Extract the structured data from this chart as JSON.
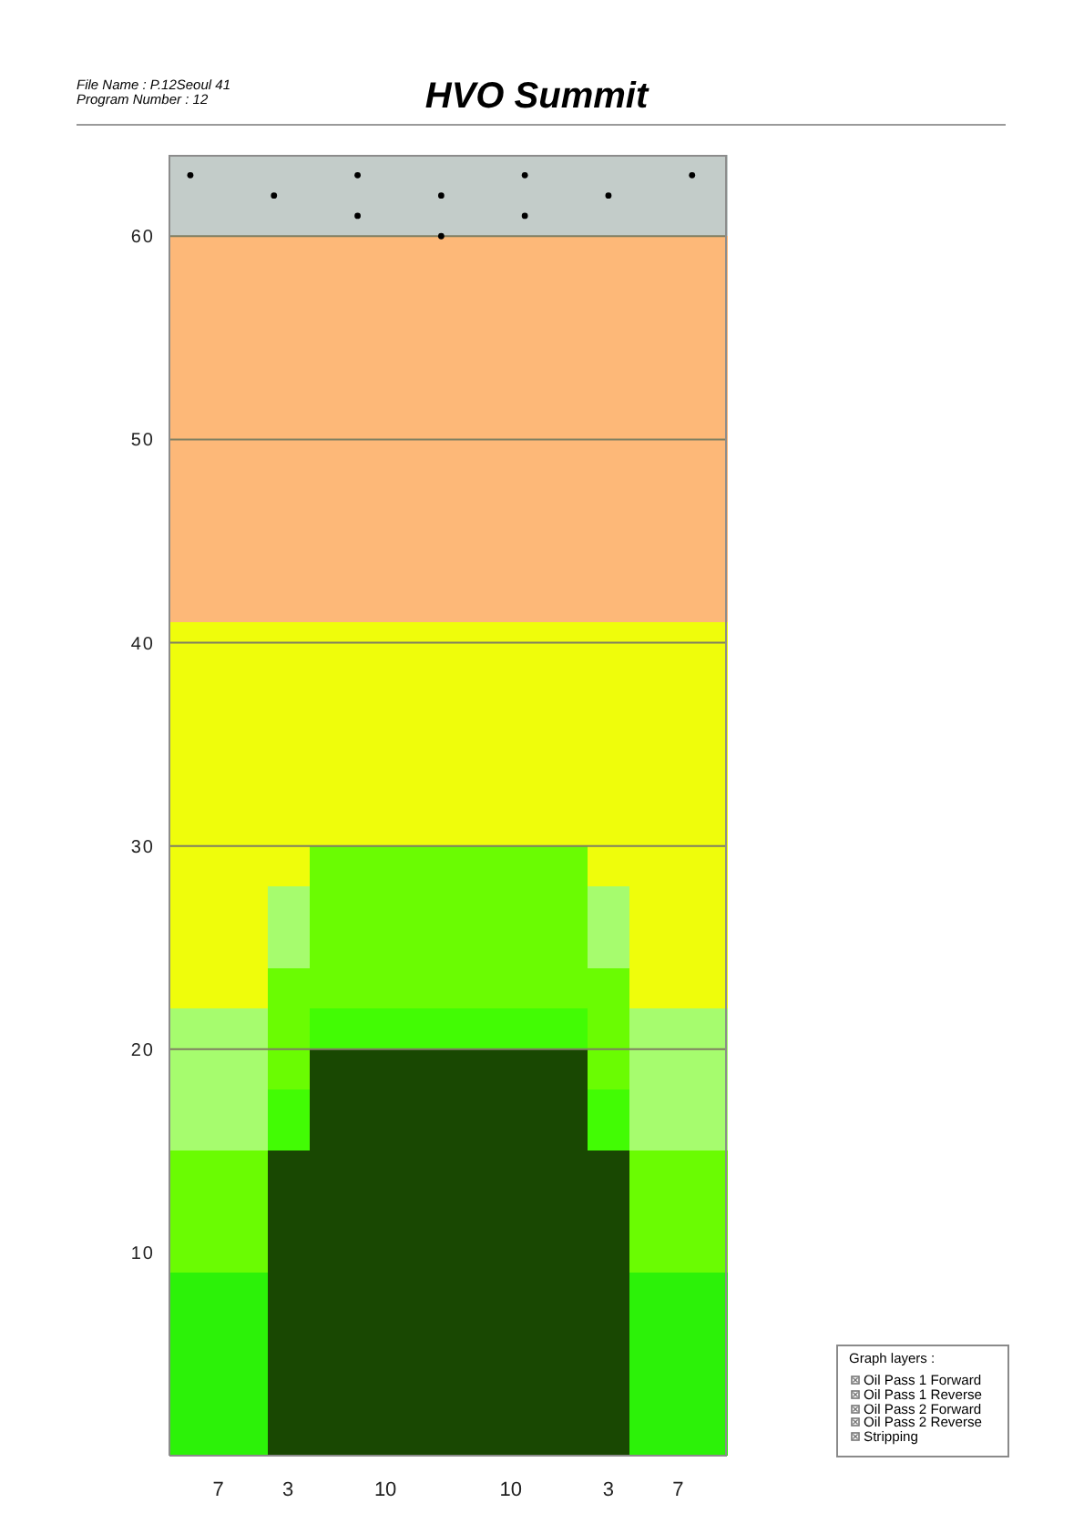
{
  "chart_data": {
    "type": "bar",
    "title": "HVO Summit",
    "annotations": [
      "File Name : P.12Seoul 41",
      "Program Number : 12",
      "Graph layers :",
      "Oil Pass 1 Forward",
      "Oil Pass 1 Reverse",
      "Oil Pass 2 Forward",
      "Oil Pass 2 Reverse",
      "Stripping"
    ],
    "categories": [
      null,
      null,
      null,
      "7",
      null,
      null,
      null,
      null,
      "3",
      null,
      null,
      null,
      null,
      null,
      null,
      "10",
      null,
      null,
      null,
      null,
      null,
      null,
      null,
      null,
      "10",
      null,
      null,
      null,
      null,
      null,
      null,
      "3",
      null,
      null,
      null,
      null,
      "7",
      null,
      null,
      null
    ],
    "stacked": true,
    "series": [
      {
        "color": "#194802",
        "values": [
          0,
          0,
          0,
          0,
          0,
          0,
          0,
          15,
          15,
          15,
          20,
          20,
          20,
          20,
          20,
          20,
          20,
          20,
          20,
          20,
          20,
          20,
          20,
          20,
          20,
          20,
          20,
          20,
          20,
          20,
          15,
          15,
          15,
          0,
          0,
          0,
          0,
          0,
          0,
          0
        ]
      },
      {
        "color": "#2cf208",
        "values": [
          9,
          9,
          9,
          9,
          9,
          9,
          9,
          0,
          0,
          0,
          0,
          0,
          0,
          0,
          0,
          0,
          0,
          0,
          0,
          0,
          0,
          0,
          0,
          0,
          0,
          0,
          0,
          0,
          0,
          0,
          0,
          0,
          0,
          9,
          9,
          9,
          9,
          9,
          9,
          9
        ]
      },
      {
        "color": "#42fc04",
        "values": [
          0,
          0,
          0,
          0,
          0,
          0,
          0,
          3,
          3,
          3,
          2,
          2,
          2,
          2,
          2,
          2,
          2,
          2,
          2,
          2,
          2,
          2,
          2,
          2,
          2,
          2,
          2,
          2,
          2,
          2,
          3,
          3,
          3,
          0,
          0,
          0,
          0,
          0,
          0,
          0
        ]
      },
      {
        "color": "#6afc02",
        "values": [
          6,
          6,
          6,
          6,
          6,
          6,
          6,
          6,
          6,
          6,
          8,
          8,
          8,
          8,
          8,
          8,
          8,
          8,
          8,
          8,
          8,
          8,
          8,
          8,
          8,
          8,
          8,
          8,
          8,
          8,
          6,
          6,
          6,
          6,
          6,
          6,
          6,
          6,
          6,
          6
        ]
      },
      {
        "color": "#a6fc6e",
        "values": [
          7,
          7,
          7,
          7,
          7,
          7,
          7,
          4,
          4,
          4,
          0,
          0,
          0,
          0,
          0,
          0,
          0,
          0,
          0,
          0,
          0,
          0,
          0,
          0,
          0,
          0,
          0,
          0,
          0,
          0,
          4,
          4,
          4,
          7,
          7,
          7,
          7,
          7,
          7,
          7
        ]
      },
      {
        "color": "#effd0b",
        "values": [
          19,
          19,
          19,
          19,
          19,
          19,
          19,
          13,
          13,
          13,
          11,
          11,
          11,
          11,
          11,
          11,
          11,
          11,
          11,
          11,
          11,
          11,
          11,
          11,
          11,
          11,
          11,
          11,
          11,
          11,
          13,
          13,
          13,
          19,
          19,
          19,
          19,
          19,
          19,
          19
        ]
      },
      {
        "color": "#fdb878",
        "values": [
          19,
          19,
          19,
          19,
          19,
          19,
          19,
          19,
          19,
          19,
          19,
          19,
          19,
          19,
          19,
          19,
          19,
          19,
          19,
          19,
          19,
          19,
          19,
          19,
          19,
          19,
          19,
          19,
          19,
          19,
          19,
          19,
          19,
          19,
          19,
          19,
          19,
          19,
          19,
          19
        ]
      },
      {
        "color": "#c3ccc9",
        "values": [
          4,
          4,
          4,
          4,
          4,
          4,
          4,
          4,
          4,
          4,
          4,
          4,
          4,
          4,
          4,
          4,
          4,
          4,
          4,
          4,
          4,
          4,
          4,
          4,
          4,
          4,
          4,
          4,
          4,
          4,
          4,
          4,
          4,
          4,
          4,
          4,
          4,
          4,
          4,
          4
        ]
      },
      {
        "type": "scatter",
        "color": "#000000",
        "values": [
          null,
          63,
          null,
          null,
          null,
          null,
          null,
          62,
          null,
          null,
          null,
          null,
          null,
          63,
          null,
          null,
          null,
          null,
          null,
          62,
          null,
          null,
          null,
          null,
          null,
          63,
          null,
          null,
          null,
          null,
          null,
          62,
          null,
          null,
          null,
          null,
          null,
          63,
          null,
          null
        ]
      },
      {
        "type": "scatter",
        "color": "#000000",
        "values": [
          null,
          null,
          null,
          null,
          null,
          null,
          null,
          null,
          null,
          null,
          null,
          null,
          null,
          61,
          null,
          null,
          null,
          null,
          null,
          60,
          null,
          null,
          null,
          null,
          null,
          61,
          null,
          null,
          null,
          null,
          null,
          null,
          null,
          null,
          null,
          null,
          null,
          null,
          null,
          null
        ]
      }
    ],
    "ylim": [
      0,
      64
    ],
    "yticks": [
      10,
      20,
      30,
      40,
      50,
      60
    ],
    "ref_lines": [
      {
        "axis": "y",
        "value": 20,
        "color": "#7f7f62"
      },
      {
        "axis": "y",
        "value": 30,
        "color": "#7f7f62"
      },
      {
        "axis": "y",
        "value": 40,
        "color": "#7f7f62"
      },
      {
        "axis": "y",
        "value": 50,
        "color": "#7f7f62"
      },
      {
        "axis": "y",
        "value": 60,
        "color": "#7f7f62"
      }
    ],
    "marker": "circle"
  }
}
